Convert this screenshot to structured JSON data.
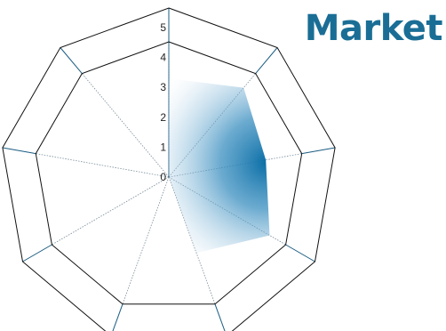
{
  "chart_data": {
    "type": "radar",
    "title": "Market",
    "title_color": "#1a6e96",
    "accent_color": "#0a6ea6",
    "grid_color": "#1a5c82",
    "frame_color": "#111111",
    "axis_count": 9,
    "rlim": [
      0,
      5
    ],
    "radial_ticks": [
      "0",
      "1",
      "2",
      "3",
      "4",
      "5"
    ],
    "grid": true,
    "values": [
      3.3,
      3.9,
      3.3,
      3.9,
      2.7,
      0,
      0,
      0,
      0
    ]
  }
}
